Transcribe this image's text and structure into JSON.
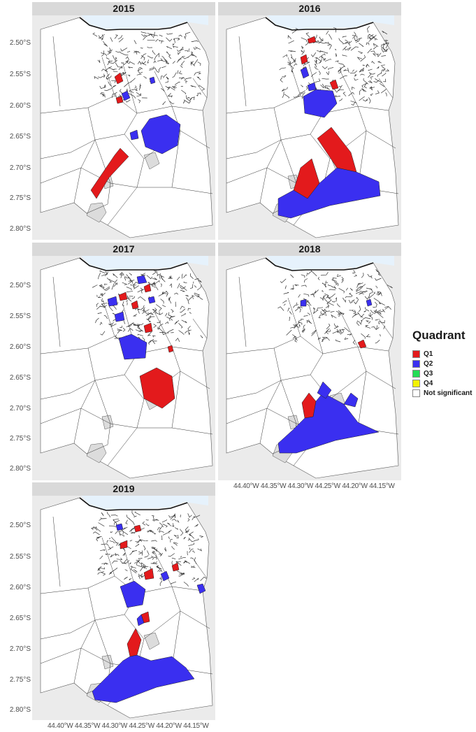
{
  "colors": {
    "Q1": "#e31a1c",
    "Q2": "#3a2ff0",
    "Q3": "#22dd55",
    "Q4": "#f2f200",
    "not_significant": "#ffffff",
    "water": "#e6f2fc",
    "background": "#ebebeb",
    "outside": "#dcdcdc"
  },
  "y_tick_labels": [
    "2.50°S",
    "2.55°S",
    "2.60°S",
    "2.65°S",
    "2.70°S",
    "2.75°S",
    "2.80°S"
  ],
  "x_tick_labels": "44.40°W 44.35°W 44.30°W 44.25°W 44.20°W 44.15°W",
  "panels": [
    {
      "year": "2015"
    },
    {
      "year": "2016"
    },
    {
      "year": "2017"
    },
    {
      "year": "2018"
    },
    {
      "year": "2019"
    }
  ],
  "legend": {
    "title": "Quadrant",
    "items": [
      {
        "key": "Q1",
        "label": "Q1"
      },
      {
        "key": "Q2",
        "label": "Q2"
      },
      {
        "key": "Q3",
        "label": "Q3"
      },
      {
        "key": "Q4",
        "label": "Q4"
      },
      {
        "key": "not_significant",
        "label": "Not significant"
      }
    ]
  }
}
